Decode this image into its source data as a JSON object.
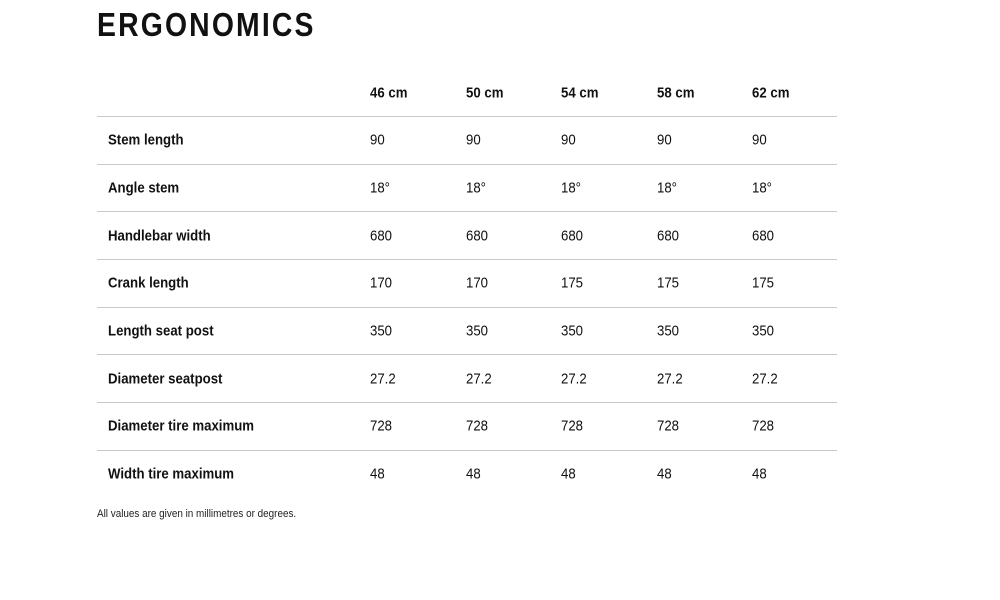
{
  "title": "ERGONOMICS",
  "columns": [
    "46 cm",
    "50 cm",
    "54 cm",
    "58 cm",
    "62 cm"
  ],
  "rows": [
    {
      "label": "Stem length",
      "values": [
        "90",
        "90",
        "90",
        "90",
        "90"
      ]
    },
    {
      "label": "Angle stem",
      "values": [
        "18°",
        "18°",
        "18°",
        "18°",
        "18°"
      ]
    },
    {
      "label": "Handlebar width",
      "values": [
        "680",
        "680",
        "680",
        "680",
        "680"
      ]
    },
    {
      "label": "Crank length",
      "values": [
        "170",
        "170",
        "175",
        "175",
        "175"
      ]
    },
    {
      "label": "Length seat post",
      "values": [
        "350",
        "350",
        "350",
        "350",
        "350"
      ]
    },
    {
      "label": "Diameter seatpost",
      "values": [
        "27.2",
        "27.2",
        "27.2",
        "27.2",
        "27.2"
      ]
    },
    {
      "label": "Diameter tire maximum",
      "values": [
        "728",
        "728",
        "728",
        "728",
        "728"
      ]
    },
    {
      "label": "Width tire maximum",
      "values": [
        "48",
        "48",
        "48",
        "48",
        "48"
      ]
    }
  ],
  "footnote": "All values are given in millimetres or degrees."
}
